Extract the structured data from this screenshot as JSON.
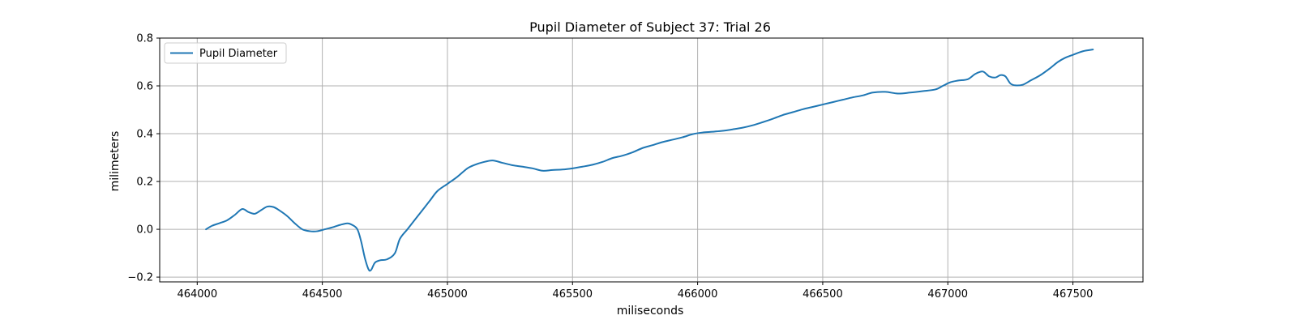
{
  "chart_data": {
    "type": "line",
    "title": "Pupil Diameter of Subject 37: Trial 26",
    "xlabel": "miliseconds",
    "ylabel": "milimeters",
    "xlim": [
      463850,
      467780
    ],
    "ylim": [
      -0.22,
      0.8
    ],
    "xticks": [
      464000,
      464500,
      465000,
      465500,
      466000,
      466500,
      467000,
      467500
    ],
    "yticks": [
      -0.2,
      0.0,
      0.2,
      0.4,
      0.6,
      0.8
    ],
    "xtick_labels": [
      "464000",
      "464500",
      "465000",
      "465500",
      "466000",
      "466500",
      "467000",
      "467500"
    ],
    "ytick_labels": [
      "−0.2",
      "0.0",
      "0.2",
      "0.4",
      "0.6",
      "0.8"
    ],
    "grid": true,
    "legend_position": "top-left",
    "series": [
      {
        "name": "Pupil Diameter",
        "color": "#1f77b4",
        "x": [
          464035,
          464060,
          464090,
          464120,
          464150,
          464180,
          464205,
          464230,
          464255,
          464280,
          464305,
          464330,
          464360,
          464390,
          464420,
          464450,
          464480,
          464510,
          464540,
          464570,
          464600,
          464620,
          464640,
          464655,
          464670,
          464685,
          464695,
          464710,
          464730,
          464760,
          464790,
          464810,
          464840,
          464870,
          464900,
          464930,
          464960,
          465000,
          465040,
          465080,
          465110,
          465140,
          465180,
          465220,
          465260,
          465300,
          465340,
          465380,
          465420,
          465460,
          465500,
          465540,
          465580,
          465620,
          465660,
          465700,
          465740,
          465780,
          465820,
          465860,
          465900,
          465940,
          465980,
          466020,
          466060,
          466100,
          466140,
          466180,
          466220,
          466260,
          466300,
          466340,
          466380,
          466420,
          466460,
          466500,
          466540,
          466580,
          466620,
          466660,
          466700,
          466750,
          466800,
          466850,
          466900,
          466950,
          466980,
          467010,
          467040,
          467080,
          467110,
          467140,
          467165,
          467190,
          467210,
          467230,
          467250,
          467270,
          467300,
          467330,
          467370,
          467410,
          467440,
          467470,
          467500,
          467540,
          467580
        ],
        "y": [
          0.0,
          0.015,
          0.026,
          0.038,
          0.06,
          0.085,
          0.072,
          0.065,
          0.08,
          0.095,
          0.093,
          0.078,
          0.055,
          0.025,
          0.0,
          -0.008,
          -0.008,
          0.0,
          0.008,
          0.018,
          0.025,
          0.018,
          0.0,
          -0.05,
          -0.12,
          -0.168,
          -0.17,
          -0.14,
          -0.13,
          -0.125,
          -0.1,
          -0.04,
          0.0,
          0.04,
          0.08,
          0.12,
          0.16,
          0.19,
          0.22,
          0.255,
          0.27,
          0.28,
          0.288,
          0.278,
          0.268,
          0.262,
          0.255,
          0.245,
          0.248,
          0.25,
          0.255,
          0.262,
          0.27,
          0.282,
          0.298,
          0.308,
          0.322,
          0.34,
          0.352,
          0.365,
          0.375,
          0.385,
          0.398,
          0.405,
          0.408,
          0.412,
          0.418,
          0.425,
          0.435,
          0.448,
          0.462,
          0.478,
          0.49,
          0.502,
          0.512,
          0.522,
          0.532,
          0.542,
          0.552,
          0.56,
          0.572,
          0.575,
          0.568,
          0.572,
          0.578,
          0.585,
          0.6,
          0.615,
          0.622,
          0.628,
          0.65,
          0.66,
          0.64,
          0.635,
          0.645,
          0.64,
          0.61,
          0.602,
          0.605,
          0.622,
          0.645,
          0.675,
          0.7,
          0.718,
          0.73,
          0.745,
          0.752
        ]
      }
    ]
  }
}
